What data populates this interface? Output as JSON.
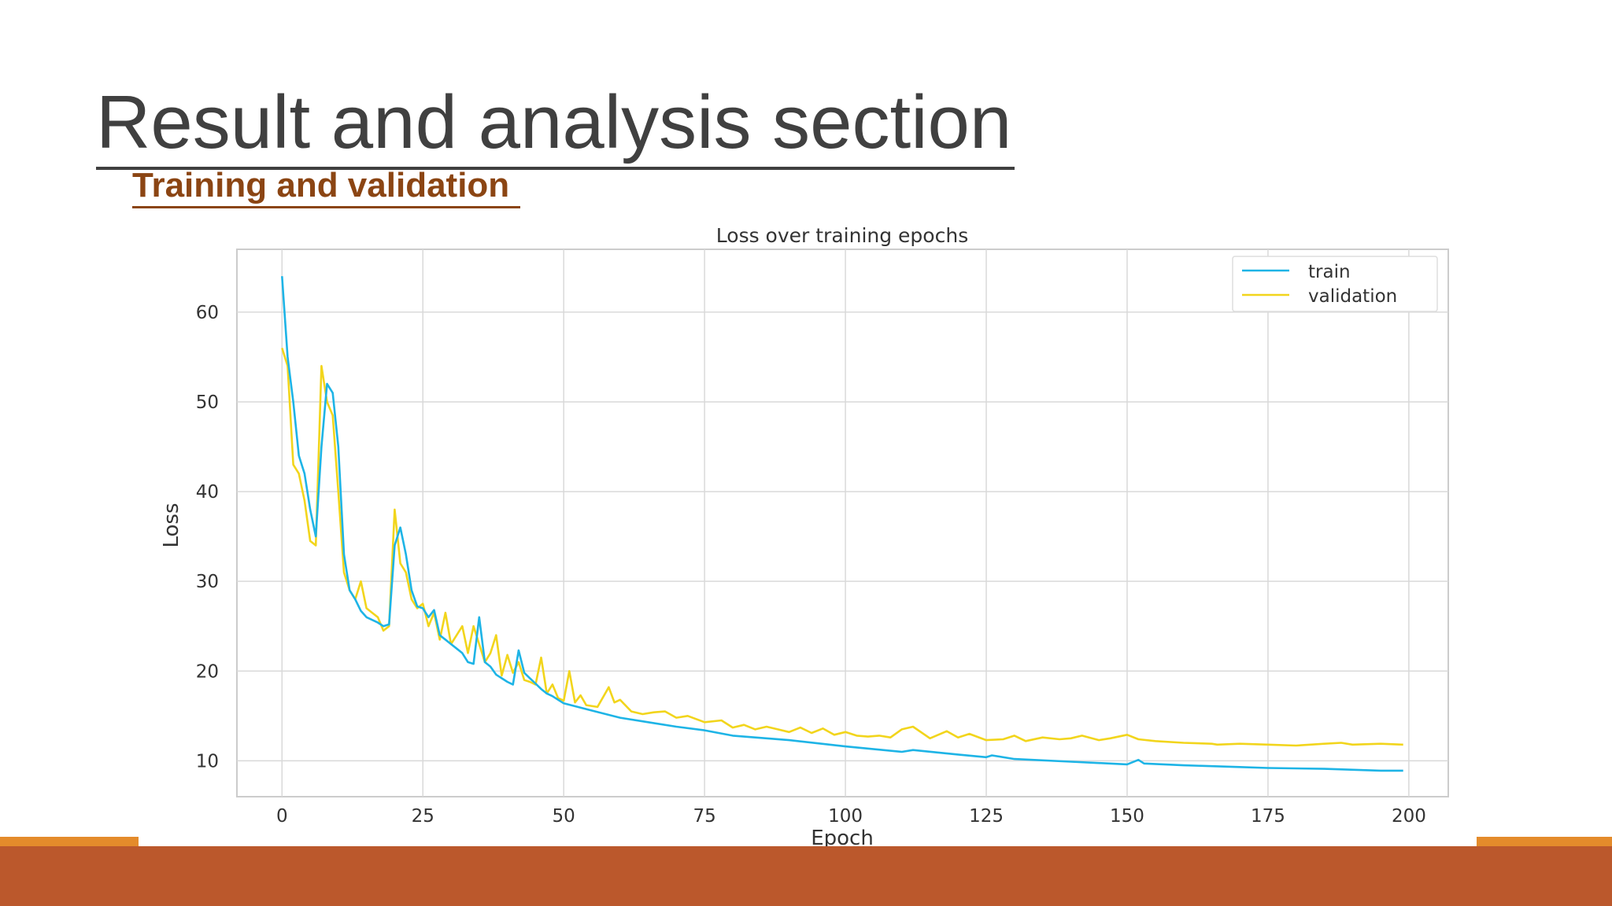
{
  "slide": {
    "title": "Result and analysis section",
    "subtitle": "Training and validation"
  },
  "colors": {
    "title": "#404040",
    "subtitle": "#8b4513",
    "footer_bar": "#bb582c",
    "footer_accent": "#e48b2b",
    "train": "#1eb4e6",
    "validation": "#f2d51c",
    "grid": "#d9d9d9"
  },
  "chart_data": {
    "type": "line",
    "title": "Loss over training epochs",
    "xlabel": "Epoch",
    "ylabel": "Loss",
    "xlim": [
      -8,
      207
    ],
    "ylim": [
      6,
      67
    ],
    "xticks": [
      0,
      25,
      50,
      75,
      100,
      125,
      150,
      175,
      200
    ],
    "yticks": [
      10,
      20,
      30,
      40,
      50,
      60
    ],
    "grid": true,
    "legend_position": "top-right",
    "series": [
      {
        "name": "train",
        "color": "#1eb4e6",
        "x": [
          0,
          1,
          2,
          3,
          4,
          5,
          6,
          7,
          8,
          9,
          10,
          11,
          12,
          13,
          14,
          15,
          16,
          17,
          18,
          19,
          20,
          21,
          22,
          23,
          24,
          25,
          26,
          27,
          28,
          29,
          30,
          31,
          32,
          33,
          34,
          35,
          36,
          37,
          38,
          39,
          40,
          41,
          42,
          43,
          44,
          45,
          46,
          47,
          48,
          50,
          55,
          60,
          65,
          70,
          75,
          80,
          90,
          100,
          110,
          112,
          120,
          125,
          126,
          130,
          140,
          150,
          152,
          153,
          160,
          170,
          175,
          185,
          195,
          199
        ],
        "y": [
          64,
          55,
          50,
          44,
          42,
          38,
          35,
          45,
          52,
          51,
          45,
          33,
          29,
          28,
          26.7,
          26,
          25.7,
          25.4,
          25,
          25.2,
          34,
          36,
          33,
          29,
          27.2,
          27,
          26,
          26.8,
          24,
          23.5,
          23,
          22.5,
          22,
          21,
          20.8,
          26,
          21,
          20.5,
          19.6,
          19.2,
          18.8,
          18.5,
          22.3,
          19.8,
          19.2,
          18.6,
          18,
          17.5,
          17.2,
          16.4,
          15.6,
          14.8,
          14.3,
          13.8,
          13.4,
          12.8,
          12.3,
          11.6,
          11.0,
          11.2,
          10.7,
          10.4,
          10.6,
          10.2,
          9.9,
          9.6,
          10.1,
          9.7,
          9.5,
          9.3,
          9.2,
          9.1,
          8.9,
          8.9
        ]
      },
      {
        "name": "validation",
        "color": "#f2d51c",
        "x": [
          0,
          1,
          2,
          3,
          4,
          5,
          6,
          7,
          8,
          9,
          10,
          11,
          12,
          13,
          14,
          15,
          16,
          17,
          18,
          19,
          20,
          21,
          22,
          23,
          24,
          25,
          26,
          27,
          28,
          29,
          30,
          31,
          32,
          33,
          34,
          35,
          36,
          37,
          38,
          39,
          40,
          41,
          42,
          43,
          44,
          45,
          46,
          47,
          48,
          49,
          50,
          51,
          52,
          53,
          54,
          56,
          58,
          59,
          60,
          62,
          64,
          66,
          68,
          70,
          72,
          75,
          78,
          80,
          82,
          84,
          86,
          88,
          90,
          92,
          94,
          96,
          98,
          100,
          102,
          104,
          106,
          108,
          110,
          112,
          115,
          118,
          120,
          122,
          125,
          128,
          130,
          132,
          135,
          138,
          140,
          142,
          145,
          147,
          150,
          152,
          155,
          160,
          165,
          166,
          170,
          175,
          180,
          185,
          188,
          190,
          195,
          199
        ],
        "y": [
          56,
          54,
          43,
          42,
          39,
          34.5,
          34,
          54,
          50,
          48.5,
          40,
          31,
          29,
          28,
          30,
          27,
          26.5,
          26,
          24.5,
          25,
          38,
          32,
          31,
          28,
          27,
          27.5,
          25,
          26.5,
          23.5,
          26.5,
          23,
          24,
          25,
          22,
          25,
          23,
          21,
          22,
          24,
          19.5,
          21.8,
          19.8,
          21,
          19,
          18.8,
          18.5,
          21.5,
          17.5,
          18.5,
          17,
          16.7,
          20,
          16.5,
          17.3,
          16.2,
          16,
          18.2,
          16.5,
          16.8,
          15.5,
          15.2,
          15.4,
          15.5,
          14.8,
          15,
          14.3,
          14.5,
          13.7,
          14,
          13.5,
          13.8,
          13.5,
          13.2,
          13.7,
          13.1,
          13.6,
          12.9,
          13.2,
          12.8,
          12.7,
          12.8,
          12.6,
          13.5,
          13.8,
          12.5,
          13.3,
          12.6,
          13,
          12.3,
          12.4,
          12.8,
          12.2,
          12.6,
          12.4,
          12.5,
          12.8,
          12.3,
          12.5,
          12.9,
          12.4,
          12.2,
          12,
          11.9,
          11.8,
          11.9,
          11.8,
          11.7,
          11.9,
          12,
          11.8,
          11.9,
          11.8
        ]
      }
    ]
  }
}
